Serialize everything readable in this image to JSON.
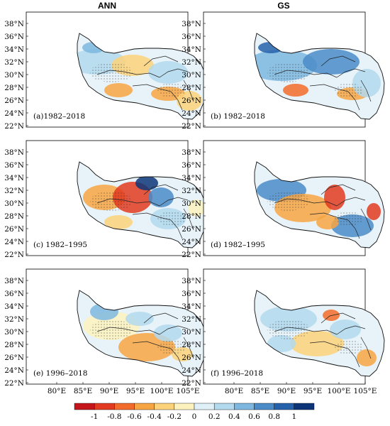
{
  "column_titles": [
    "ANN",
    "GS"
  ],
  "panels": [
    {
      "label": "(a)1982–2018"
    },
    {
      "label": "(b) 1982–2018"
    },
    {
      "label": "(c) 1982–1995"
    },
    {
      "label": "(d) 1982–1995"
    },
    {
      "label": "(e) 1996–2018"
    },
    {
      "label": "(f) 1996–2018"
    }
  ],
  "lat_ticks": [
    "22°N",
    "24°N",
    "26°N",
    "28°N",
    "30°N",
    "32°N",
    "34°N",
    "36°N",
    "38°N"
  ],
  "lon_ticks": [
    "80°E",
    "85°E",
    "90°E",
    "95°E",
    "100°E",
    "105°E"
  ],
  "colorbar": {
    "labels": [
      "-1",
      "-0.8",
      "-0.6",
      "-0.4",
      "-0.2",
      "0",
      "0.2",
      "0.4",
      "0.6",
      "0.8",
      "1"
    ],
    "colors": [
      "#c4141c",
      "#e23a20",
      "#f26b2a",
      "#f7a442",
      "#fcd27a",
      "#fdf2be",
      "#dff0f8",
      "#b2d9ee",
      "#7db7e0",
      "#4a8bc8",
      "#2662ab",
      "#0c3579"
    ]
  }
}
